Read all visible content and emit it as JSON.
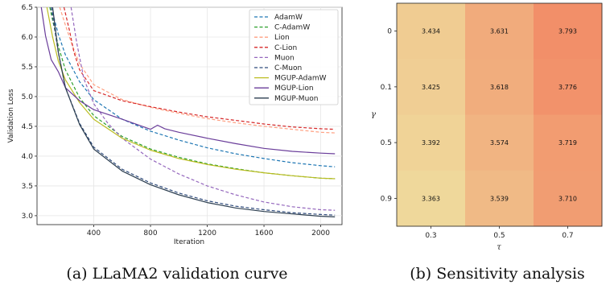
{
  "captions": {
    "left": "(a) LLaMA2 validation curve",
    "right": "(b) Sensitivity analysis"
  },
  "colors": {
    "adamw": "#1f77b4",
    "c_adamw": "#2ca02c",
    "lion": "#ff9f80",
    "c_lion": "#d62728",
    "muon": "#9467bd",
    "c_muon": "#2f4b7c",
    "mgup_adamw": "#bcbd22",
    "mgup_lion": "#6a3d9a",
    "mgup_muon": "#2c3e50",
    "heat_low": "#efe3a2",
    "heat_high": "#f28e68"
  },
  "chart_data": [
    {
      "type": "line",
      "title": "",
      "xlabel": "Iteration",
      "ylabel": "Validation Loss",
      "xlim": [
        0,
        2150
      ],
      "ylim": [
        2.85,
        6.5
      ],
      "xticks": [
        400,
        800,
        1200,
        1600,
        2000
      ],
      "yticks": [
        3.0,
        3.5,
        4.0,
        4.5,
        5.0,
        5.5,
        6.0,
        6.5
      ],
      "grid": true,
      "legend_position": "top-right",
      "series": [
        {
          "name": "AdamW",
          "color_key": "adamw",
          "dash": true,
          "points": [
            [
              100,
              6.5
            ],
            [
              150,
              6.05
            ],
            [
              200,
              5.7
            ],
            [
              300,
              5.25
            ],
            [
              400,
              4.95
            ],
            [
              600,
              4.62
            ],
            [
              800,
              4.42
            ],
            [
              1000,
              4.27
            ],
            [
              1200,
              4.14
            ],
            [
              1400,
              4.04
            ],
            [
              1600,
              3.96
            ],
            [
              1800,
              3.89
            ],
            [
              2000,
              3.84
            ],
            [
              2100,
              3.82
            ]
          ]
        },
        {
          "name": "C-AdamW",
          "color_key": "c_adamw",
          "dash": true,
          "points": [
            [
              90,
              6.5
            ],
            [
              150,
              5.85
            ],
            [
              200,
              5.45
            ],
            [
              300,
              4.98
            ],
            [
              400,
              4.68
            ],
            [
              600,
              4.33
            ],
            [
              800,
              4.12
            ],
            [
              1000,
              3.98
            ],
            [
              1200,
              3.87
            ],
            [
              1400,
              3.79
            ],
            [
              1600,
              3.72
            ],
            [
              1800,
              3.67
            ],
            [
              2000,
              3.63
            ],
            [
              2100,
              3.62
            ]
          ]
        },
        {
          "name": "Lion",
          "color_key": "lion",
          "dash": true,
          "points": [
            [
              160,
              6.5
            ],
            [
              200,
              6.2
            ],
            [
              250,
              5.85
            ],
            [
              300,
              5.55
            ],
            [
              400,
              5.2
            ],
            [
              600,
              4.95
            ],
            [
              800,
              4.82
            ],
            [
              1000,
              4.72
            ],
            [
              1200,
              4.63
            ],
            [
              1400,
              4.56
            ],
            [
              1600,
              4.5
            ],
            [
              1800,
              4.45
            ],
            [
              2000,
              4.4
            ],
            [
              2100,
              4.39
            ]
          ]
        },
        {
          "name": "C-Lion",
          "color_key": "c_lion",
          "dash": true,
          "points": [
            [
              190,
              6.5
            ],
            [
              230,
              6.1
            ],
            [
              260,
              5.75
            ],
            [
              300,
              5.45
            ],
            [
              400,
              5.1
            ],
            [
              600,
              4.93
            ],
            [
              800,
              4.83
            ],
            [
              1000,
              4.74
            ],
            [
              1200,
              4.66
            ],
            [
              1400,
              4.6
            ],
            [
              1600,
              4.54
            ],
            [
              1800,
              4.49
            ],
            [
              2000,
              4.46
            ],
            [
              2100,
              4.45
            ]
          ]
        },
        {
          "name": "Muon",
          "color_key": "muon",
          "dash": true,
          "points": [
            [
              240,
              6.5
            ],
            [
              280,
              5.9
            ],
            [
              330,
              5.3
            ],
            [
              400,
              4.88
            ],
            [
              500,
              4.55
            ],
            [
              600,
              4.3
            ],
            [
              800,
              3.95
            ],
            [
              1000,
              3.7
            ],
            [
              1200,
              3.5
            ],
            [
              1400,
              3.35
            ],
            [
              1600,
              3.23
            ],
            [
              1800,
              3.15
            ],
            [
              2000,
              3.1
            ],
            [
              2100,
              3.09
            ]
          ]
        },
        {
          "name": "C-Muon",
          "color_key": "c_muon",
          "dash": true,
          "points": [
            [
              100,
              6.5
            ],
            [
              150,
              5.75
            ],
            [
              200,
              5.15
            ],
            [
              300,
              4.55
            ],
            [
              400,
              4.15
            ],
            [
              600,
              3.78
            ],
            [
              800,
              3.55
            ],
            [
              1000,
              3.38
            ],
            [
              1200,
              3.25
            ],
            [
              1400,
              3.16
            ],
            [
              1600,
              3.1
            ],
            [
              1800,
              3.05
            ],
            [
              2000,
              3.02
            ],
            [
              2100,
              3.01
            ]
          ]
        },
        {
          "name": "MGUP-AdamW",
          "color_key": "mgup_adamw",
          "dash": false,
          "points": [
            [
              70,
              6.5
            ],
            [
              110,
              6.0
            ],
            [
              150,
              5.6
            ],
            [
              200,
              5.28
            ],
            [
              300,
              4.9
            ],
            [
              400,
              4.62
            ],
            [
              600,
              4.3
            ],
            [
              800,
              4.1
            ],
            [
              1000,
              3.96
            ],
            [
              1200,
              3.86
            ],
            [
              1400,
              3.78
            ],
            [
              1600,
              3.72
            ],
            [
              1800,
              3.67
            ],
            [
              2000,
              3.63
            ],
            [
              2100,
              3.62
            ]
          ]
        },
        {
          "name": "MGUP-Lion",
          "color_key": "mgup_lion",
          "dash": false,
          "points": [
            [
              30,
              6.5
            ],
            [
              60,
              6.02
            ],
            [
              100,
              5.62
            ],
            [
              150,
              5.42
            ],
            [
              200,
              5.15
            ],
            [
              300,
              4.93
            ],
            [
              400,
              4.78
            ],
            [
              600,
              4.62
            ],
            [
              800,
              4.45
            ],
            [
              850,
              4.52
            ],
            [
              900,
              4.46
            ],
            [
              1000,
              4.4
            ],
            [
              1200,
              4.3
            ],
            [
              1400,
              4.21
            ],
            [
              1600,
              4.13
            ],
            [
              1800,
              4.08
            ],
            [
              2000,
              4.05
            ],
            [
              2100,
              4.04
            ]
          ]
        },
        {
          "name": "MGUP-Muon",
          "color_key": "mgup_muon",
          "dash": false,
          "points": [
            [
              110,
              6.5
            ],
            [
              150,
              5.75
            ],
            [
              200,
              5.15
            ],
            [
              300,
              4.53
            ],
            [
              400,
              4.12
            ],
            [
              600,
              3.75
            ],
            [
              800,
              3.52
            ],
            [
              1000,
              3.35
            ],
            [
              1200,
              3.22
            ],
            [
              1400,
              3.13
            ],
            [
              1600,
              3.07
            ],
            [
              1800,
              3.03
            ],
            [
              2000,
              2.99
            ],
            [
              2100,
              2.98
            ]
          ]
        }
      ]
    },
    {
      "type": "heatmap",
      "title": "",
      "xlabel": "τ",
      "ylabel": "γ",
      "x_categories": [
        "0.3",
        "0.5",
        "0.7"
      ],
      "y_categories": [
        "0",
        "0.1",
        "0.5",
        "0.9"
      ],
      "values": [
        [
          3.434,
          3.631,
          3.793
        ],
        [
          3.425,
          3.618,
          3.776
        ],
        [
          3.392,
          3.574,
          3.719
        ],
        [
          3.363,
          3.539,
          3.71
        ]
      ],
      "value_labels": [
        [
          "3.434",
          "3.631",
          "3.793"
        ],
        [
          "3.425",
          "3.618",
          "3.776"
        ],
        [
          "3.392",
          "3.574",
          "3.719"
        ],
        [
          "3.363",
          "3.539",
          "3.710"
        ]
      ],
      "colorscale": "low yellow to high orange",
      "vrange": [
        3.3,
        3.8
      ]
    }
  ]
}
